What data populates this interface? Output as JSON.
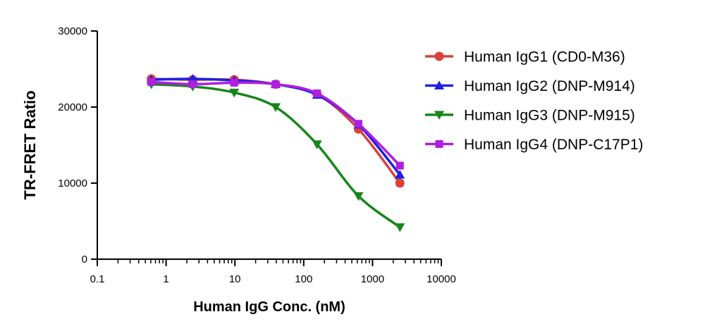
{
  "chart_data": {
    "type": "line",
    "xlabel": "Human IgG Conc. (nM)",
    "ylabel": "TR-FRET Ratio",
    "x_scale": "log",
    "xlim": [
      0.1,
      10000
    ],
    "ylim": [
      0,
      30000
    ],
    "x_ticks": [
      0.1,
      1,
      10,
      100,
      1000,
      10000
    ],
    "x_tick_labels": [
      "0.1",
      "1",
      "10",
      "100",
      "1000",
      "10000"
    ],
    "y_ticks": [
      0,
      10000,
      20000,
      30000
    ],
    "y_tick_labels": [
      "0",
      "10000",
      "20000",
      "30000"
    ],
    "grid": false,
    "legend_position": "right",
    "x": [
      0.61,
      2.44,
      9.77,
      39.1,
      156,
      625,
      2500
    ],
    "series": [
      {
        "name": "Human IgG1 (CD0-M36)",
        "color": "#d9413b",
        "marker": "circle",
        "values": [
          23700,
          23600,
          23600,
          23000,
          21700,
          17100,
          10000
        ]
      },
      {
        "name": "Human IgG2 (DNP-M914)",
        "color": "#1f1fe6",
        "marker": "triangle-up",
        "values": [
          23600,
          23700,
          23500,
          23000,
          21600,
          17700,
          11100
        ]
      },
      {
        "name": "Human IgG3 (DNP-M915)",
        "color": "#16861a",
        "marker": "triangle-down",
        "values": [
          23000,
          22700,
          21900,
          20000,
          15100,
          8300,
          4200
        ]
      },
      {
        "name": "Human IgG4 (DNP-C17P1)",
        "color": "#b01ee0",
        "marker": "square",
        "values": [
          23300,
          23000,
          23200,
          23000,
          21800,
          17800,
          12300
        ]
      }
    ]
  }
}
